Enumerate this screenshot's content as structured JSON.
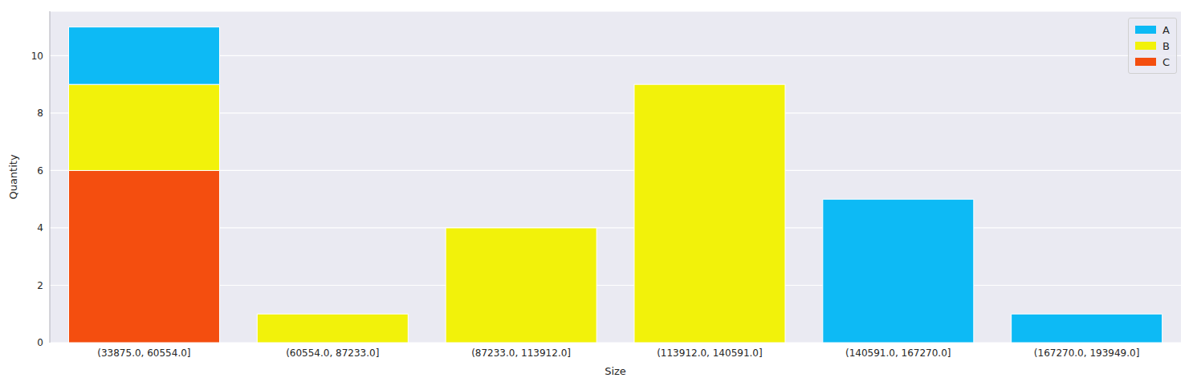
{
  "chart_data": {
    "type": "bar",
    "x_label": "Size",
    "y_label": "Quantity",
    "categories": [
      "(33875.0, 60554.0]",
      "(60554.0, 87233.0]",
      "(87233.0, 113912.0]",
      "(113912.0, 140591.0]",
      "(140591.0, 167270.0]",
      "(167270.0, 193949.0]"
    ],
    "series": [
      {
        "name": "A",
        "color": "#0dbaf5",
        "values": [
          2,
          0,
          0,
          0,
          5,
          1
        ]
      },
      {
        "name": "B",
        "color": "#f2f20a",
        "values": [
          3,
          1,
          4,
          9,
          0,
          0
        ]
      },
      {
        "name": "C",
        "color": "#f44e0f",
        "values": [
          6,
          0,
          0,
          0,
          0,
          0
        ]
      }
    ],
    "stacked": true,
    "ylim": [
      0,
      11.55
    ],
    "yticks": [
      0,
      2,
      4,
      6,
      8,
      10
    ],
    "grid": true,
    "legend": "upper right"
  }
}
